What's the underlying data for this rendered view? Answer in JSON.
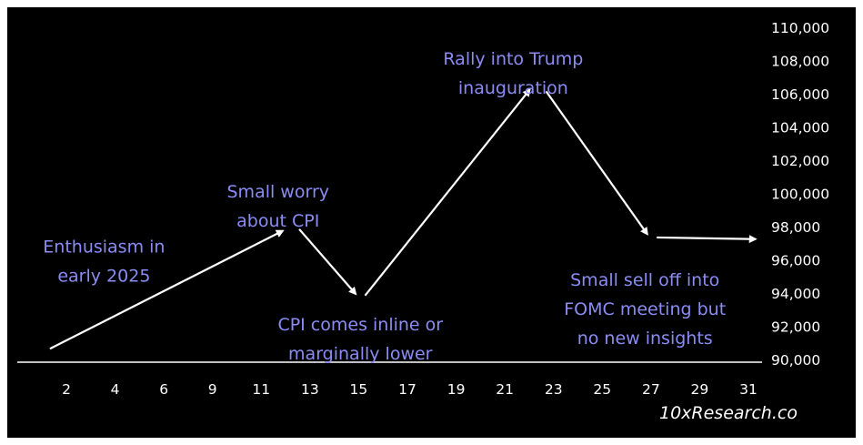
{
  "chart_data": {
    "type": "line",
    "title": "",
    "xlabel": "",
    "ylabel": "",
    "x_ticks": [
      "2",
      "4",
      "6",
      "9",
      "11",
      "13",
      "15",
      "17",
      "19",
      "21",
      "23",
      "25",
      "27",
      "29",
      "31"
    ],
    "y_ticks": [
      "110,000",
      "108,000",
      "106,000",
      "104,000",
      "102,000",
      "100,000",
      "98,000",
      "96,000",
      "94,000",
      "92,000",
      "90,000"
    ],
    "ylim": [
      90000,
      110000
    ],
    "grid": false,
    "legend": "none",
    "colors": {
      "background": "#000000",
      "line": "#ffffff",
      "annotation": "#8b8cf4",
      "text": "#ffffff"
    },
    "arrows": [
      {
        "from": {
          "x": 1.3,
          "y": 90700
        },
        "to": {
          "x": 11.2,
          "y": 97800
        }
      },
      {
        "from": {
          "x": 11.9,
          "y": 97900
        },
        "to": {
          "x": 14.3,
          "y": 94000
        }
      },
      {
        "from": {
          "x": 14.7,
          "y": 93900
        },
        "to": {
          "x": 21.7,
          "y": 106300
        }
      },
      {
        "from": {
          "x": 22.4,
          "y": 106200
        },
        "to": {
          "x": 26.7,
          "y": 97600
        }
      },
      {
        "from": {
          "x": 27.1,
          "y": 97400
        },
        "to": {
          "x": 31.3,
          "y": 97300
        }
      }
    ],
    "annotations": [
      {
        "lines": [
          "Enthusiasm in",
          "early 2025"
        ],
        "x": 3.6,
        "y": 96500
      },
      {
        "lines": [
          "Small worry",
          "about CPI"
        ],
        "x": 11.0,
        "y": 99800
      },
      {
        "lines": [
          "CPI comes inline or",
          "marginally lower"
        ],
        "x": 14.5,
        "y": 91800
      },
      {
        "lines": [
          "Rally into Trump",
          "inauguration"
        ],
        "x": 21.0,
        "y": 107800
      },
      {
        "lines": [
          "Small sell off into",
          "FOMC meeting but",
          "no new insights"
        ],
        "x": 26.6,
        "y": 94500
      }
    ],
    "watermark": "10xResearch.co"
  }
}
